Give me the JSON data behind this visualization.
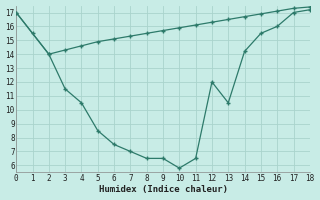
{
  "line1_x": [
    0,
    1,
    2,
    3,
    4,
    5,
    6,
    7,
    8,
    9,
    10,
    11,
    12,
    13,
    14,
    15,
    16,
    17,
    18
  ],
  "line1_y": [
    17,
    15.5,
    14,
    11.5,
    10.5,
    8.5,
    7.5,
    7.0,
    6.5,
    6.5,
    5.8,
    6.5,
    12.0,
    10.5,
    14.2,
    15.5,
    16.0,
    17.0,
    17.2
  ],
  "line2_x": [
    0,
    2,
    3,
    4,
    5,
    6,
    7,
    8,
    9,
    10,
    11,
    12,
    13,
    14,
    15,
    16,
    17,
    18
  ],
  "line2_y": [
    17,
    14,
    14.3,
    14.6,
    14.9,
    15.1,
    15.3,
    15.5,
    15.7,
    15.9,
    16.1,
    16.3,
    16.5,
    16.7,
    16.9,
    17.1,
    17.3,
    17.4
  ],
  "color": "#2d7a6a",
  "bg_color": "#c8ece6",
  "grid_color": "#aad4cc",
  "xlabel": "Humidex (Indice chaleur)",
  "xlim": [
    0,
    18
  ],
  "ylim": [
    5.5,
    17.5
  ],
  "xticks": [
    0,
    1,
    2,
    3,
    4,
    5,
    6,
    7,
    8,
    9,
    10,
    11,
    12,
    13,
    14,
    15,
    16,
    17,
    18
  ],
  "yticks": [
    6,
    7,
    8,
    9,
    10,
    11,
    12,
    13,
    14,
    15,
    16,
    17
  ]
}
